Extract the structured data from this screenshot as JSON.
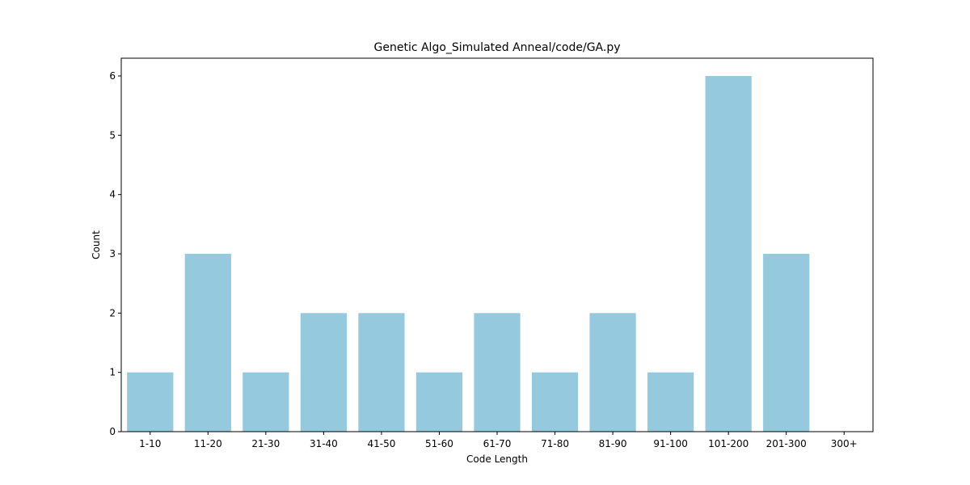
{
  "chart_data": {
    "type": "bar",
    "title": "Genetic Algo_Simulated Anneal/code/GA.py",
    "xlabel": "Code Length",
    "ylabel": "Count",
    "categories": [
      "1-10",
      "11-20",
      "21-30",
      "31-40",
      "41-50",
      "51-60",
      "61-70",
      "71-80",
      "81-90",
      "91-100",
      "101-200",
      "201-300",
      "300+"
    ],
    "values": [
      1,
      3,
      1,
      2,
      2,
      1,
      2,
      1,
      2,
      1,
      6,
      3,
      0
    ],
    "yticks": [
      0,
      1,
      2,
      3,
      4,
      5,
      6
    ],
    "ylim": [
      0,
      6.3
    ],
    "bar_color": "#95c9de",
    "grid": false,
    "legend": "none"
  }
}
